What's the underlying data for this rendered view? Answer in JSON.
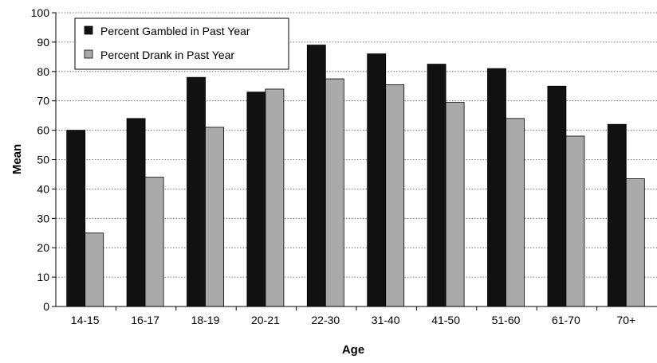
{
  "chart_data": {
    "type": "bar",
    "title": "",
    "xlabel": "Age",
    "ylabel": "Mean",
    "ylim": [
      0,
      100
    ],
    "yticks": [
      0,
      10,
      20,
      30,
      40,
      50,
      60,
      70,
      80,
      90,
      100
    ],
    "grid": "horizontal dotted",
    "legend_position": "top-left",
    "categories": [
      "14-15",
      "16-17",
      "18-19",
      "20-21",
      "22-30",
      "31-40",
      "41-50",
      "51-60",
      "61-70",
      "70+"
    ],
    "series": [
      {
        "name": "Percent Gambled in Past Year",
        "color": "#111111",
        "values": [
          60,
          64,
          78,
          73,
          89,
          86,
          82.5,
          81,
          75,
          62
        ]
      },
      {
        "name": "Percent Drank in Past Year",
        "color": "#aaaaaa",
        "values": [
          25,
          44,
          61,
          74,
          77.5,
          75.5,
          69.5,
          64,
          58,
          43.5
        ]
      }
    ]
  }
}
